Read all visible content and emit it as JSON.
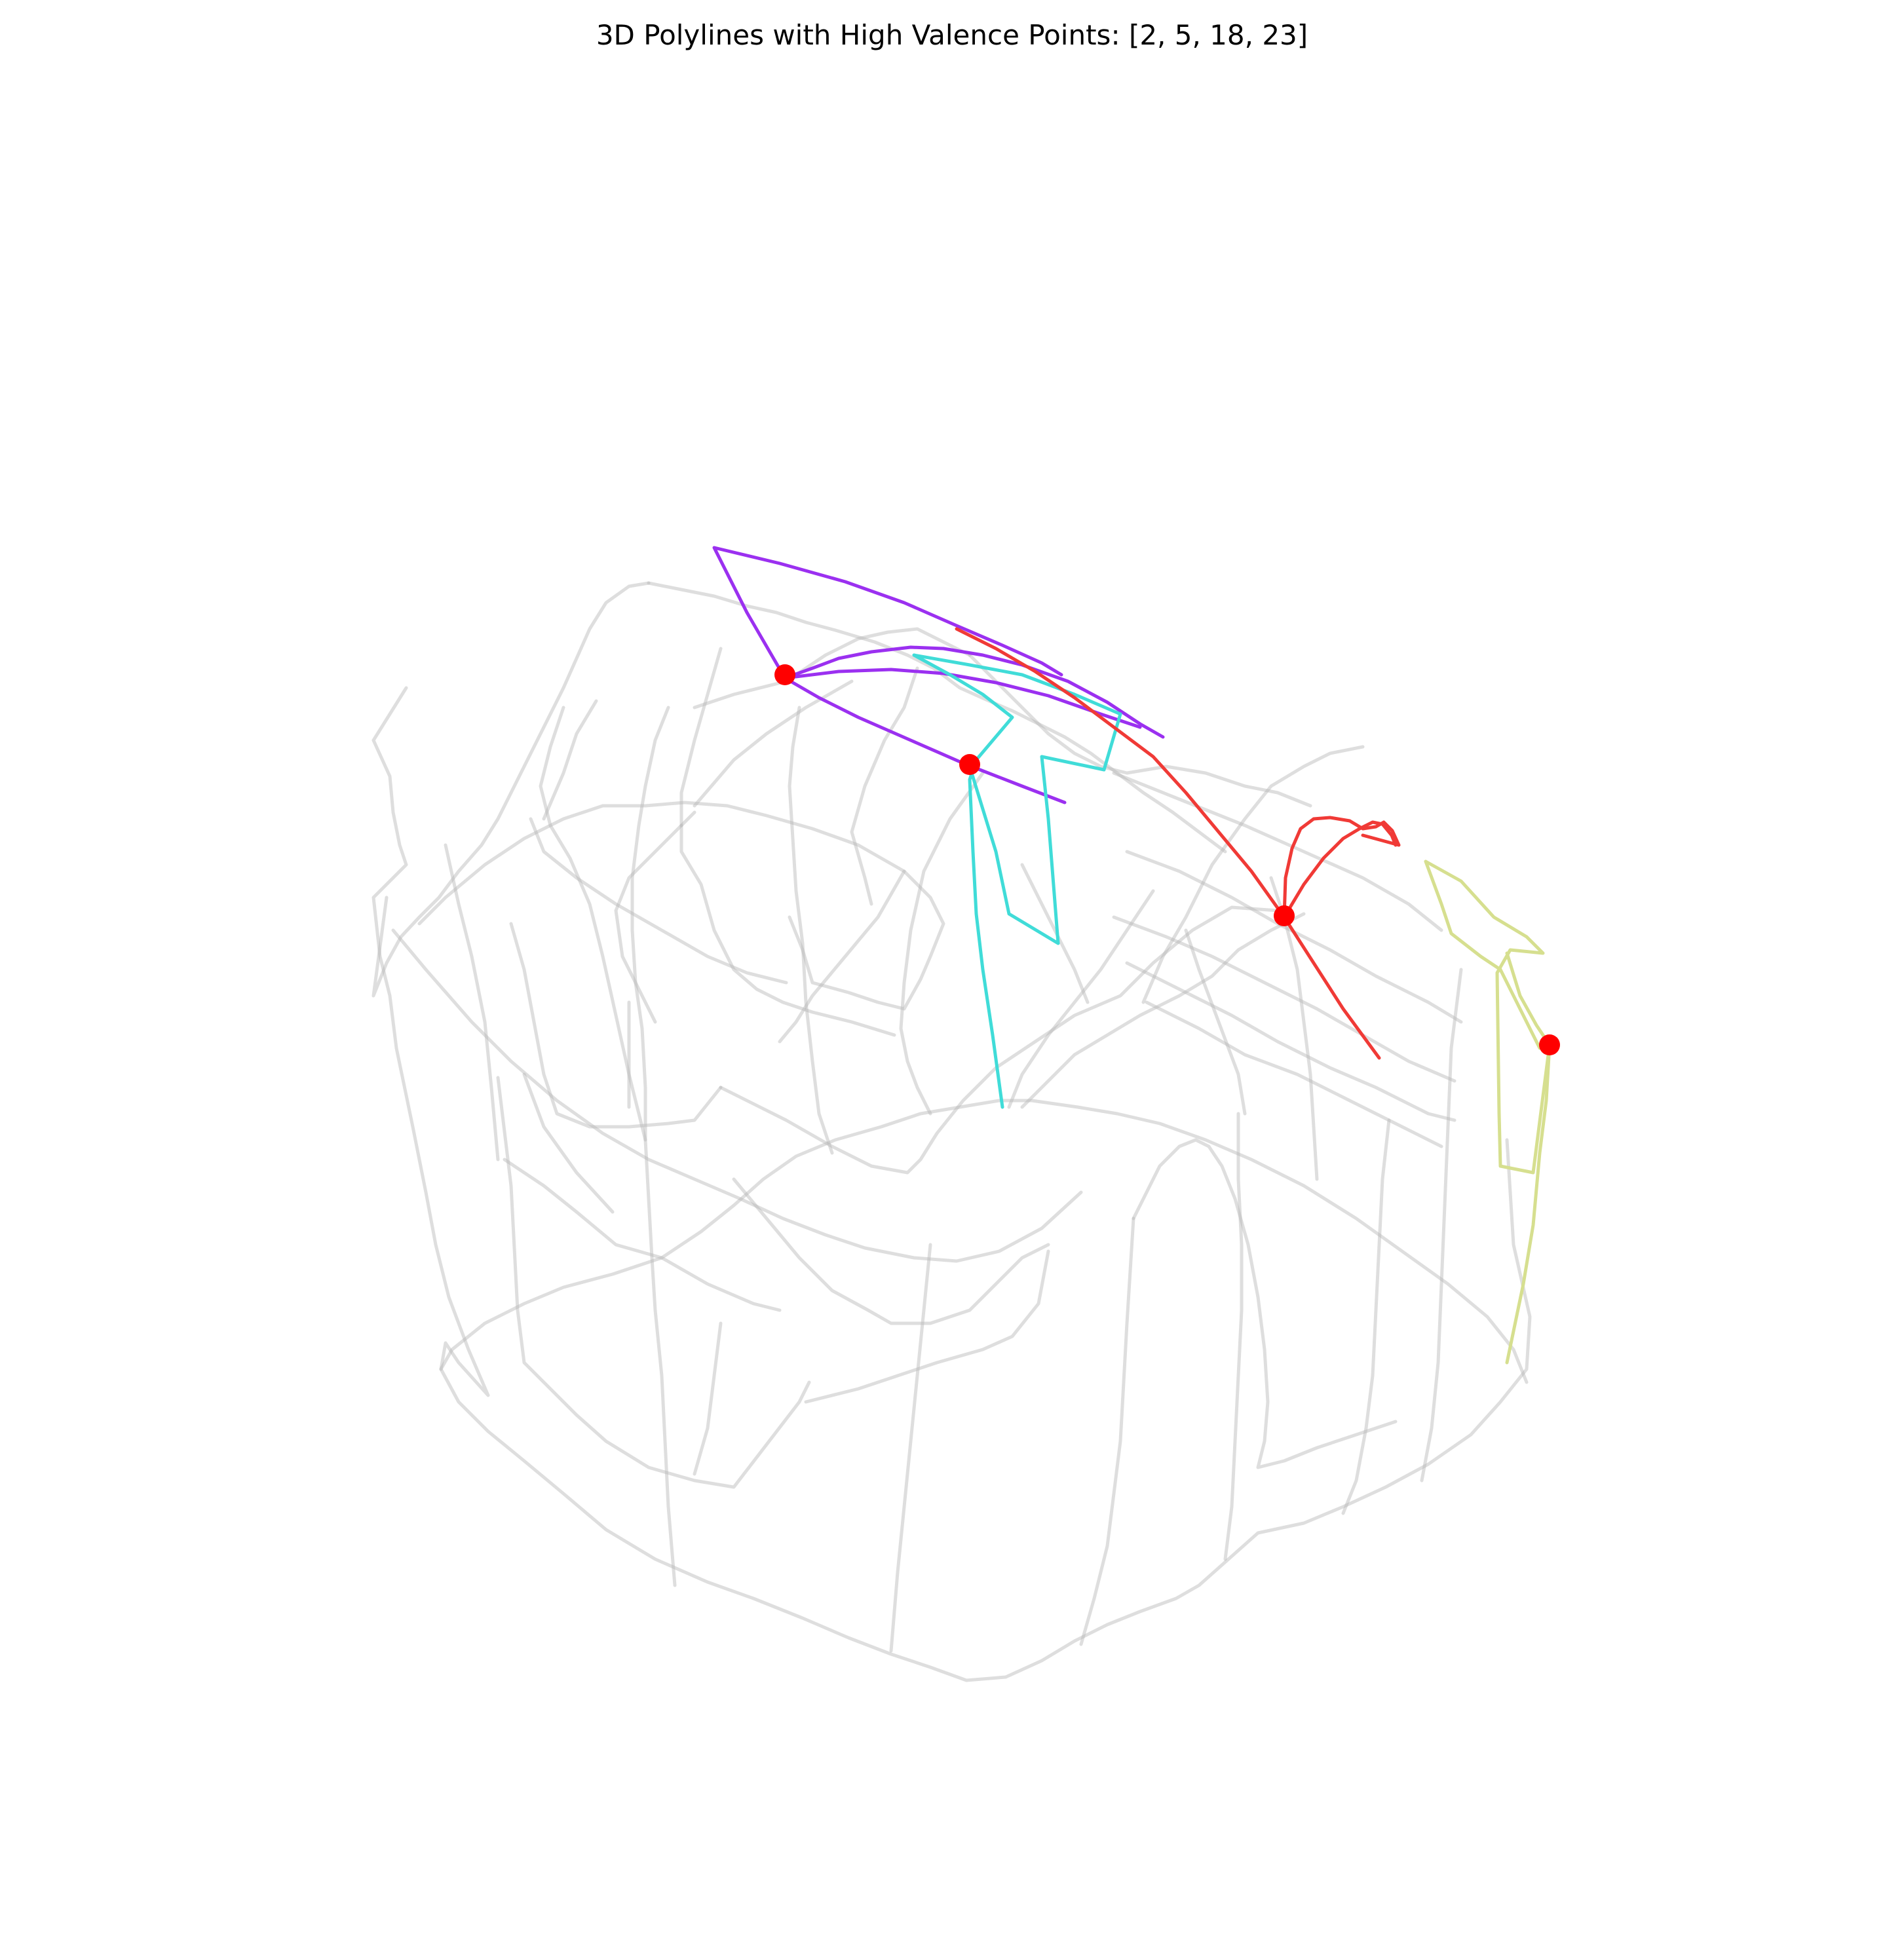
{
  "title": "3D Polylines with High Valence Points: [2, 5, 18, 23]",
  "colors": {
    "mesh": "#b5b5b5",
    "purple": "#9b30f0",
    "cyan": "#40dcd8",
    "red": "#f03a36",
    "yellow": "#d6df8f",
    "marker": "#ff0000"
  },
  "high_valence_points": [
    2,
    5,
    18,
    23
  ],
  "series": [
    {
      "color_key": "purple"
    },
    {
      "color_key": "cyan"
    },
    {
      "color_key": "red"
    },
    {
      "color_key": "yellow"
    }
  ]
}
